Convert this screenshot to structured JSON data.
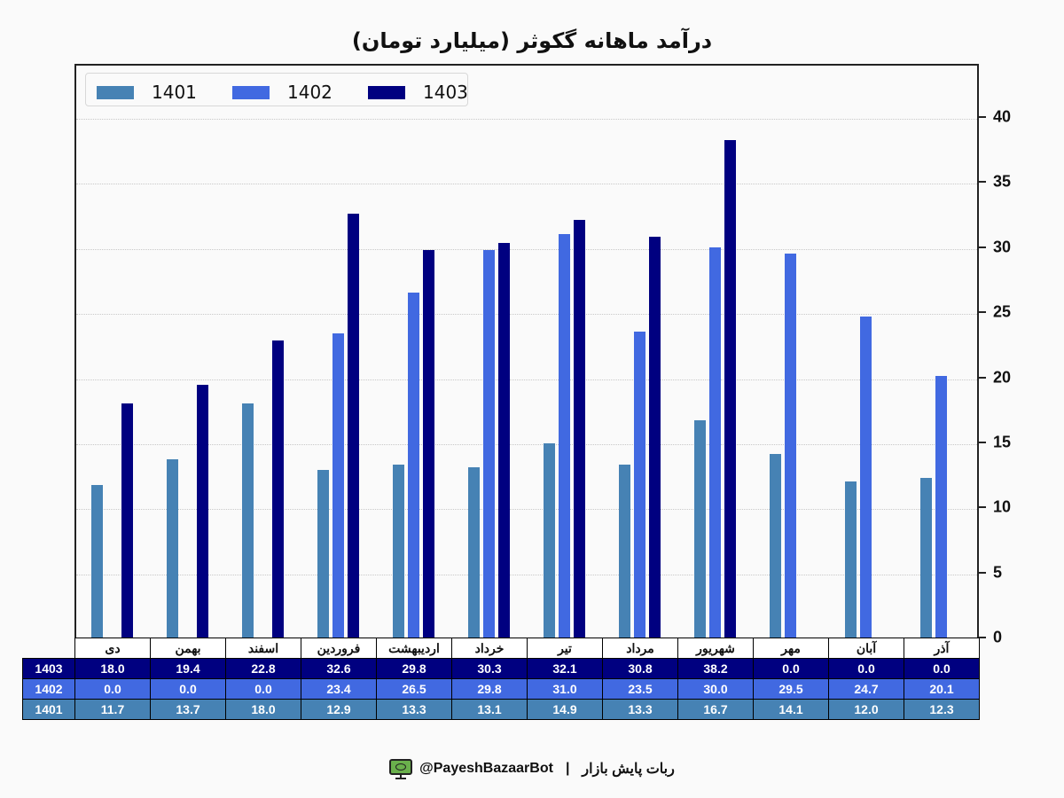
{
  "title": "درآمد ماهانه گکوثر (میلیارد تومان)",
  "colors": {
    "1401": "#4682b4",
    "1402": "#4169e1",
    "1403": "#000080"
  },
  "legend": [
    {
      "label": "1401",
      "color": "#4682b4"
    },
    {
      "label": "1402",
      "color": "#4169e1"
    },
    {
      "label": "1403",
      "color": "#000080"
    }
  ],
  "yaxis": {
    "ticks": [
      "0",
      "5",
      "10",
      "15",
      "20",
      "25",
      "30",
      "35",
      "40"
    ]
  },
  "chart_data": {
    "type": "bar",
    "title": "درآمد ماهانه گکوثر (میلیارد تومان)",
    "xlabel": "",
    "ylabel": "",
    "ylim": [
      0,
      44
    ],
    "grid": true,
    "legend_position": "upper left",
    "categories": [
      "دی",
      "بهمن",
      "اسفند",
      "فروردین",
      "اردیبهشت",
      "خرداد",
      "تیر",
      "مرداد",
      "شهریور",
      "مهر",
      "آبان",
      "آذر"
    ],
    "series": [
      {
        "name": "1401",
        "values": [
          11.7,
          13.7,
          18.0,
          12.9,
          13.3,
          13.1,
          14.9,
          13.3,
          16.7,
          14.1,
          12.0,
          12.3
        ]
      },
      {
        "name": "1402",
        "values": [
          0.0,
          0.0,
          0.0,
          23.4,
          26.5,
          29.8,
          31.0,
          23.5,
          30.0,
          29.5,
          24.7,
          20.1
        ]
      },
      {
        "name": "1403",
        "values": [
          18.0,
          19.4,
          22.8,
          32.6,
          29.8,
          30.3,
          32.1,
          30.8,
          38.2,
          0.0,
          0.0,
          0.0
        ]
      }
    ]
  },
  "table": {
    "months": [
      "دی",
      "بهمن",
      "اسفند",
      "فروردین",
      "اردیبهشت",
      "خرداد",
      "تیر",
      "مرداد",
      "شهریور",
      "مهر",
      "آبان",
      "آذر"
    ],
    "rows": [
      {
        "label": "1403",
        "values": [
          "18.0",
          "19.4",
          "22.8",
          "32.6",
          "29.8",
          "30.3",
          "32.1",
          "30.8",
          "38.2",
          "0.0",
          "0.0",
          "0.0"
        ]
      },
      {
        "label": "1402",
        "values": [
          "0.0",
          "0.0",
          "0.0",
          "23.4",
          "26.5",
          "29.8",
          "31.0",
          "23.5",
          "30.0",
          "29.5",
          "24.7",
          "20.1"
        ]
      },
      {
        "label": "1401",
        "values": [
          "11.7",
          "13.7",
          "18.0",
          "12.9",
          "13.3",
          "13.1",
          "14.9",
          "13.3",
          "16.7",
          "14.1",
          "12.0",
          "12.3"
        ]
      }
    ]
  },
  "footer": {
    "handle": "@PayeshBazaarBot",
    "separator": "|",
    "bot_name": "ربات پایش بازار",
    "icon": "monitor-icon"
  }
}
